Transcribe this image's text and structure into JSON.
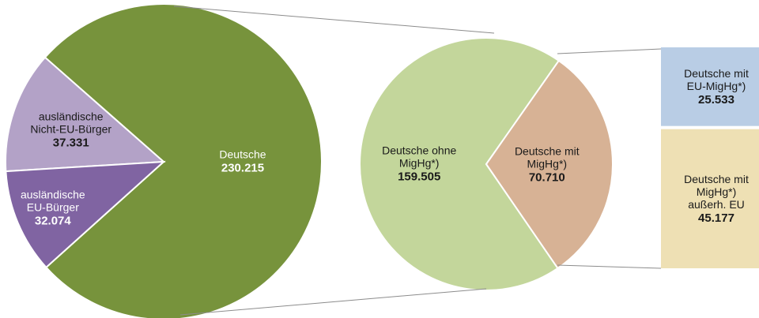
{
  "chart_data": [
    {
      "type": "pie",
      "categories": [
        "Deutsche",
        "ausländische\nNicht-EU-Bürger",
        "ausländische\nEU-Bürger"
      ],
      "values": [
        230215,
        37331,
        32074
      ],
      "value_labels": [
        "230.215",
        "37.331",
        "32.074"
      ],
      "colors": [
        "#77933c",
        "#b3a2c7",
        "#8064a2"
      ]
    },
    {
      "type": "pie",
      "categories": [
        "Deutsche ohne\nMigHg*)",
        "Deutsche mit\nMigHg*)"
      ],
      "values": [
        159505,
        70710
      ],
      "value_labels": [
        "159.505",
        "70.710"
      ],
      "colors": [
        "#c3d69b",
        "#d7b295"
      ]
    },
    {
      "type": "bar",
      "categories": [
        "Deutsche mit\nEU-MigHg*)",
        "Deutsche mit\nMigHg*)\naußerh. EU"
      ],
      "values": [
        25533,
        45177
      ],
      "value_labels": [
        "25.533",
        "45.177"
      ],
      "colors": [
        "#b9cde5",
        "#eee0b4"
      ]
    }
  ]
}
